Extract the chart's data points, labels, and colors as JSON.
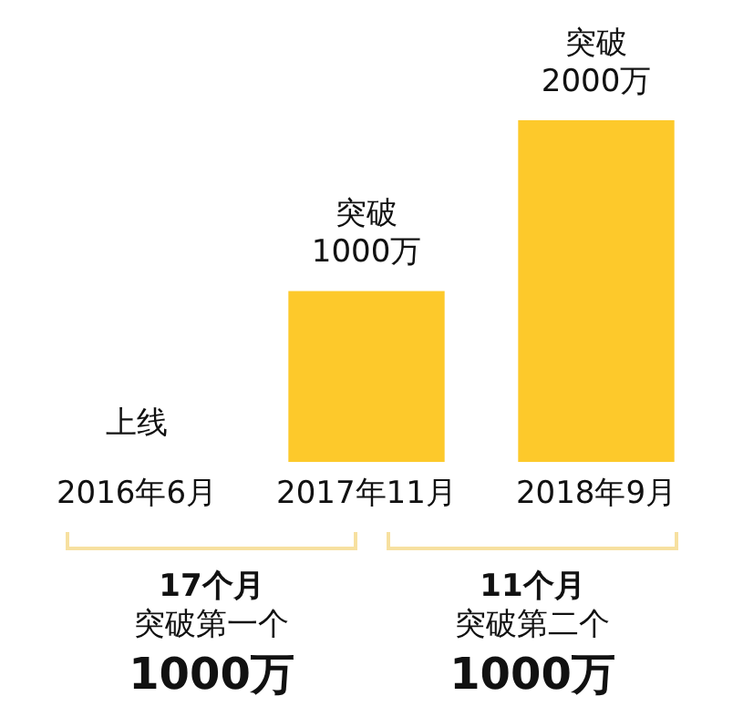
{
  "chart_data": {
    "type": "bar",
    "categories": [
      "2016年6月",
      "2017年11月",
      "2018年9月"
    ],
    "values": [
      0,
      1000,
      2000
    ],
    "color": "#fdc92b",
    "value_labels": [
      "上线",
      "突破\n1000万",
      "突破\n2000万"
    ],
    "grid": false,
    "annotations": [
      "17个月",
      "突破第一个",
      "1000万",
      "11个月",
      "突破第二个",
      "1000万"
    ]
  }
}
